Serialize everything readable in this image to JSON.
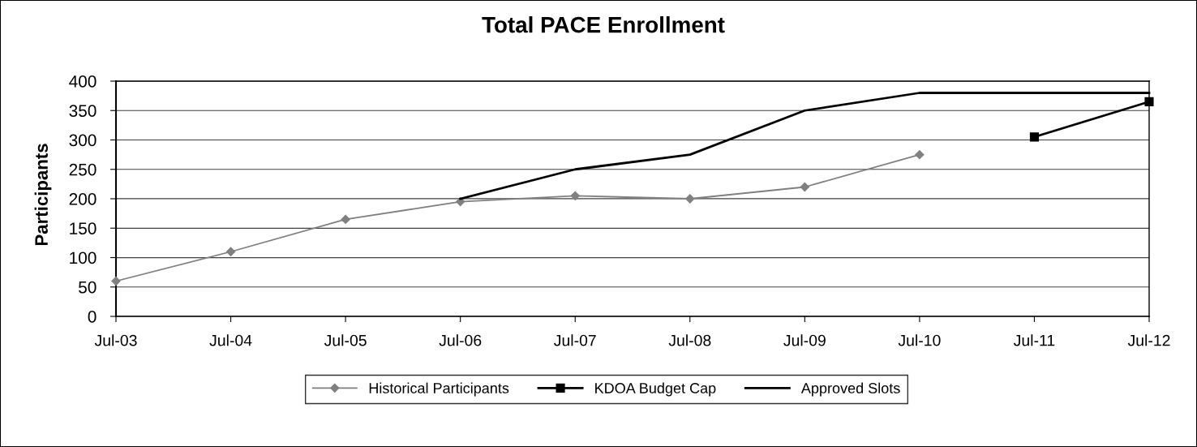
{
  "chart_data": {
    "type": "line",
    "title": "Total PACE Enrollment",
    "ylabel": "Participants",
    "categories": [
      "Jul-03",
      "Jul-04",
      "Jul-05",
      "Jul-06",
      "Jul-07",
      "Jul-08",
      "Jul-09",
      "Jul-10",
      "Jul-11",
      "Jul-12"
    ],
    "series": [
      {
        "name": "Historical Participants",
        "color": "#808080",
        "marker": "diamond",
        "values": [
          60,
          110,
          165,
          195,
          205,
          200,
          220,
          275,
          null,
          null
        ]
      },
      {
        "name": "KDOA Budget Cap",
        "color": "#000000",
        "marker": "square",
        "values": [
          null,
          null,
          null,
          null,
          null,
          null,
          null,
          null,
          305,
          365
        ]
      },
      {
        "name": "Approved Slots",
        "color": "#000000",
        "marker": "none",
        "values": [
          null,
          null,
          null,
          200,
          250,
          275,
          350,
          380,
          380,
          380
        ]
      }
    ],
    "ylim": [
      0,
      400
    ],
    "yticks": [
      0,
      50,
      100,
      150,
      200,
      250,
      300,
      350,
      400
    ],
    "grid": "y",
    "legend": "bottom"
  }
}
